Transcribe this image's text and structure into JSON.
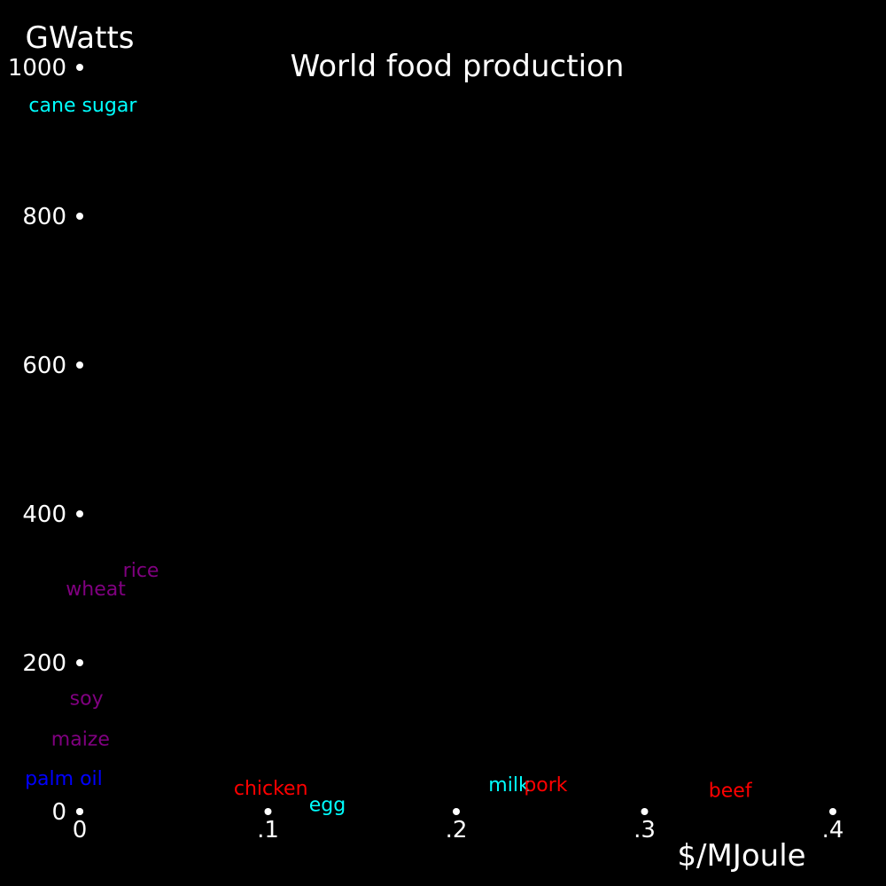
{
  "chart_data": {
    "type": "scatter",
    "title": "World food production",
    "ylabel": "GWatts",
    "xlabel": "$/MJoule",
    "xlim": [
      0,
      0.4
    ],
    "ylim": [
      0,
      1000
    ],
    "grid": false,
    "background": "#000000",
    "foreground": "#ffffff",
    "x_ticks": [
      {
        "value": 0,
        "label": "0"
      },
      {
        "value": 0.1,
        "label": ".1"
      },
      {
        "value": 0.2,
        "label": ".2"
      },
      {
        "value": 0.3,
        "label": ".3"
      },
      {
        "value": 0.4,
        "label": ".4"
      }
    ],
    "y_ticks": [
      {
        "value": 0,
        "label": "0"
      },
      {
        "value": 200,
        "label": "200"
      },
      {
        "value": 400,
        "label": "400"
      },
      {
        "value": 600,
        "label": "600"
      },
      {
        "value": 800,
        "label": "800"
      },
      {
        "value": 1000,
        "label": "1000"
      }
    ],
    "points": [
      {
        "label": "cane sugar",
        "x": 0.0016,
        "y": 950,
        "color": "#00ffff"
      },
      {
        "label": "rice",
        "x": 0.0325,
        "y": 325,
        "color": "#800080"
      },
      {
        "label": "wheat",
        "x": 0.0085,
        "y": 300,
        "color": "#800080"
      },
      {
        "label": "soy",
        "x": 0.0036,
        "y": 153,
        "color": "#800080"
      },
      {
        "label": "maize",
        "x": 0.0004,
        "y": 98,
        "color": "#800080"
      },
      {
        "label": "palm oil",
        "x": -0.0085,
        "y": 45,
        "color": "#0000ff"
      },
      {
        "label": "chicken",
        "x": 0.1015,
        "y": 32,
        "color": "#ff0000"
      },
      {
        "label": "egg",
        "x": 0.1315,
        "y": 10,
        "color": "#00ffff"
      },
      {
        "label": "milk",
        "x": 0.228,
        "y": 37,
        "color": "#00ffff"
      },
      {
        "label": "pork",
        "x": 0.2475,
        "y": 37,
        "color": "#ff0000"
      },
      {
        "label": "beef",
        "x": 0.3455,
        "y": 29,
        "color": "#ff0000"
      }
    ]
  }
}
